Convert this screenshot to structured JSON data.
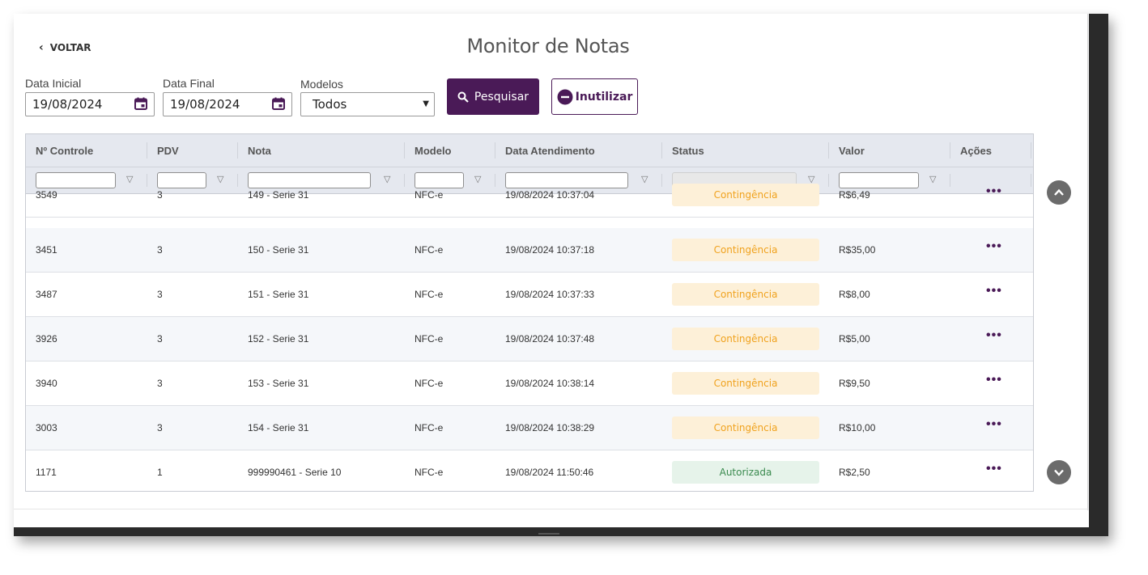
{
  "header": {
    "back_label": "VOLTAR",
    "title": "Monitor de Notas"
  },
  "filters": {
    "data_inicial": {
      "label": "Data Inicial",
      "value": "19/08/2024"
    },
    "data_final": {
      "label": "Data Final",
      "value": "19/08/2024"
    },
    "modelos": {
      "label": "Modelos",
      "value": "Todos"
    }
  },
  "buttons": {
    "pesquisar": "Pesquisar",
    "inutilizar": "Inutilizar"
  },
  "colors": {
    "primary": "#4a1a57",
    "contingencia_bg": "#fdf0d8",
    "contingencia_text": "#f0a21e",
    "autorizada_bg": "#e6f3ea",
    "autorizada_text": "#3a8a4e"
  },
  "table": {
    "columns": [
      "Nº Controle",
      "PDV",
      "Nota",
      "Modelo",
      "Data Atendimento",
      "Status",
      "Valor",
      "Ações"
    ],
    "rows": [
      {
        "controle": "3549",
        "pdv": "3",
        "nota": "149 - Serie 31",
        "modelo": "NFC-e",
        "data": "19/08/2024 10:37:04",
        "status": "Contingência",
        "valor": "R$6,49",
        "acao": "•••"
      },
      {
        "controle": "3451",
        "pdv": "3",
        "nota": "150 - Serie 31",
        "modelo": "NFC-e",
        "data": "19/08/2024 10:37:18",
        "status": "Contingência",
        "valor": "R$35,00",
        "acao": "•••"
      },
      {
        "controle": "3487",
        "pdv": "3",
        "nota": "151 - Serie 31",
        "modelo": "NFC-e",
        "data": "19/08/2024 10:37:33",
        "status": "Contingência",
        "valor": "R$8,00",
        "acao": "•••"
      },
      {
        "controle": "3926",
        "pdv": "3",
        "nota": "152 - Serie 31",
        "modelo": "NFC-e",
        "data": "19/08/2024 10:37:48",
        "status": "Contingência",
        "valor": "R$5,00",
        "acao": "•••"
      },
      {
        "controle": "3940",
        "pdv": "3",
        "nota": "153 - Serie 31",
        "modelo": "NFC-e",
        "data": "19/08/2024 10:38:14",
        "status": "Contingência",
        "valor": "R$9,50",
        "acao": "•••"
      },
      {
        "controle": "3003",
        "pdv": "3",
        "nota": "154 - Serie 31",
        "modelo": "NFC-e",
        "data": "19/08/2024 10:38:29",
        "status": "Contingência",
        "valor": "R$10,00",
        "acao": "•••"
      },
      {
        "controle": "1171",
        "pdv": "1",
        "nota": "999990461 - Serie 10",
        "modelo": "NFC-e",
        "data": "19/08/2024 11:50:46",
        "status": "Autorizada",
        "valor": "R$2,50",
        "acao": "•••"
      }
    ]
  },
  "icons": {
    "back": "chevron-left-icon",
    "calendar": "calendar-icon",
    "search": "search-icon",
    "minus_circle": "minus-circle-icon",
    "filter": "filter-icon",
    "actions": "more-horizontal-icon",
    "scroll_up": "chevron-up-icon",
    "scroll_down": "chevron-down-icon"
  }
}
